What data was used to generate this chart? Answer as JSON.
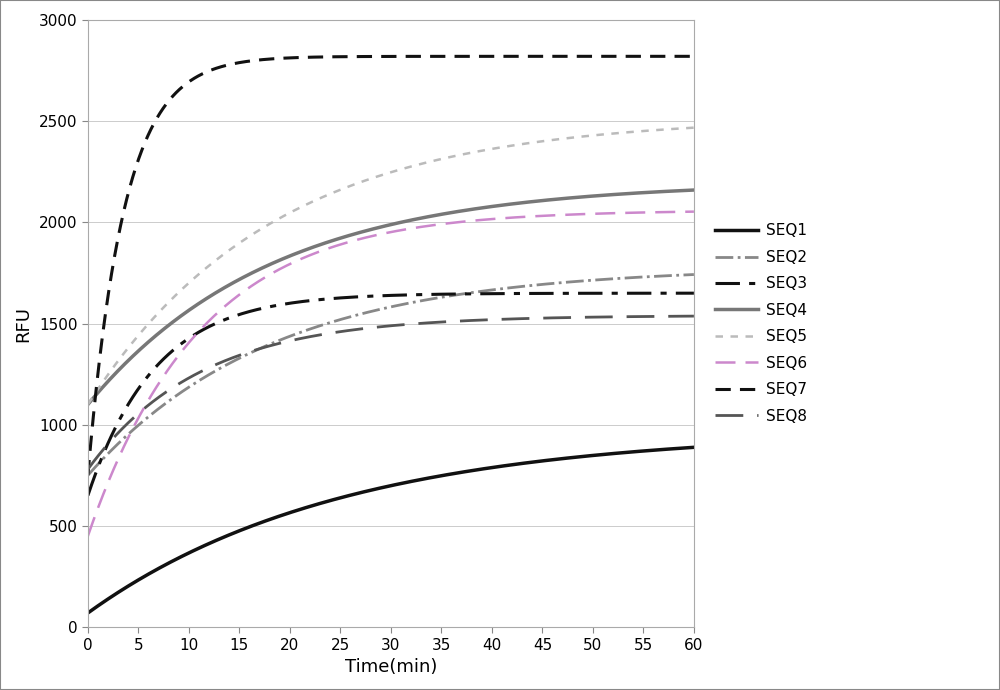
{
  "xlabel": "Time(min)",
  "ylabel": "RFU",
  "xlim": [
    0,
    60
  ],
  "ylim": [
    0,
    3000
  ],
  "xticks": [
    0,
    5,
    10,
    15,
    20,
    25,
    30,
    35,
    40,
    45,
    50,
    55,
    60
  ],
  "yticks": [
    0,
    500,
    1000,
    1500,
    2000,
    2500,
    3000
  ],
  "background_color": "#ffffff",
  "series": [
    {
      "name": "SEQ1",
      "color": "#111111",
      "ls": "-",
      "lw": 2.5,
      "dashes": null,
      "a": 970,
      "b": 0.04,
      "y0": 70
    },
    {
      "name": "SEQ2",
      "color": "#888888",
      "ls": "-.",
      "lw": 2.0,
      "dashes": null,
      "a": 1780,
      "b": 0.055,
      "y0": 750
    },
    {
      "name": "SEQ3",
      "color": "#111111",
      "ls": "-.",
      "lw": 2.2,
      "dashes": [
        8,
        3,
        2,
        3
      ],
      "a": 1650,
      "b": 0.15,
      "y0": 650
    },
    {
      "name": "SEQ4",
      "color": "#777777",
      "ls": "-",
      "lw": 2.5,
      "dashes": null,
      "a": 2200,
      "b": 0.055,
      "y0": 1100
    },
    {
      "name": "SEQ5",
      "color": "#bbbbbb",
      "ls": "--",
      "lw": 1.8,
      "dashes": [
        3,
        3
      ],
      "a": 2520,
      "b": 0.055,
      "y0": 1100
    },
    {
      "name": "SEQ6",
      "color": "#cc88cc",
      "ls": "--",
      "lw": 1.8,
      "dashes": [
        8,
        4
      ],
      "a": 2060,
      "b": 0.09,
      "y0": 450
    },
    {
      "name": "SEQ7",
      "color": "#111111",
      "ls": "--",
      "lw": 2.2,
      "dashes": [
        5,
        3
      ],
      "a": 2820,
      "b": 0.28,
      "y0": 750
    },
    {
      "name": "SEQ8",
      "color": "#555555",
      "ls": "--",
      "lw": 2.0,
      "dashes": [
        10,
        5
      ],
      "a": 1540,
      "b": 0.09,
      "y0": 780
    }
  ]
}
